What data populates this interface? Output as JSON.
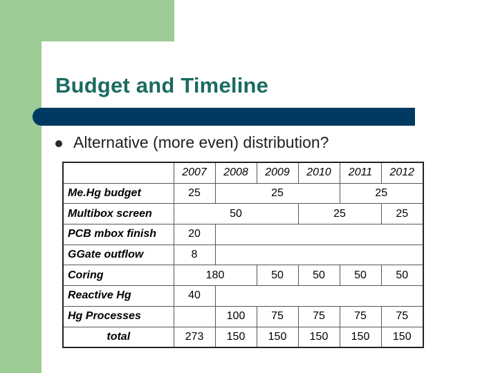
{
  "slide": {
    "title": "Budget and Timeline",
    "bullet": "Alternative (more even) distribution?"
  },
  "table": {
    "years": [
      "2007",
      "2008",
      "2009",
      "2010",
      "2011",
      "2012"
    ],
    "rows": [
      {
        "label": "Me.Hg budget",
        "cells": [
          {
            "v": "25",
            "span": 1
          },
          {
            "v": "25",
            "span": 3
          },
          {
            "v": "25",
            "span": 2
          }
        ]
      },
      {
        "label": "Multibox screen",
        "cells": [
          {
            "v": "50",
            "span": 3
          },
          {
            "v": "25",
            "span": 2
          },
          {
            "v": "25",
            "span": 1
          }
        ]
      },
      {
        "label": "PCB mbox finish",
        "cells": [
          {
            "v": "20",
            "span": 1
          },
          {
            "v": "",
            "span": 5
          }
        ]
      },
      {
        "label": "GGate outflow",
        "cells": [
          {
            "v": "8",
            "span": 1
          },
          {
            "v": "",
            "span": 5
          }
        ]
      },
      {
        "label": "Coring",
        "cells": [
          {
            "v": "180",
            "span": 2
          },
          {
            "v": "50",
            "span": 1
          },
          {
            "v": "50",
            "span": 1
          },
          {
            "v": "50",
            "span": 1
          },
          {
            "v": "50",
            "span": 1
          }
        ]
      },
      {
        "label": "Reactive Hg",
        "cells": [
          {
            "v": "40",
            "span": 1
          },
          {
            "v": "",
            "span": 5
          }
        ]
      },
      {
        "label": "Hg Processes",
        "cells": [
          {
            "v": "",
            "span": 1
          },
          {
            "v": "100",
            "span": 1
          },
          {
            "v": "75",
            "span": 1
          },
          {
            "v": "75",
            "span": 1
          },
          {
            "v": "75",
            "span": 1
          },
          {
            "v": "75",
            "span": 1
          }
        ]
      },
      {
        "label": "total",
        "total": true,
        "cells": [
          {
            "v": "273",
            "span": 1
          },
          {
            "v": "150",
            "span": 1
          },
          {
            "v": "150",
            "span": 1
          },
          {
            "v": "150",
            "span": 1
          },
          {
            "v": "150",
            "span": 1
          },
          {
            "v": "150",
            "span": 1
          }
        ]
      }
    ]
  },
  "colors": {
    "accent_green": "#9dcc94",
    "title_teal": "#1b6b61",
    "bar_navy": "#003a63"
  }
}
